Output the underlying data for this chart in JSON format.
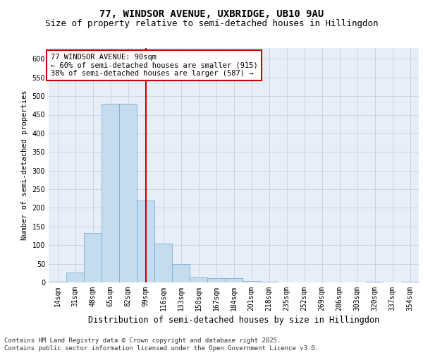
{
  "title1": "77, WINDSOR AVENUE, UXBRIDGE, UB10 9AU",
  "title2": "Size of property relative to semi-detached houses in Hillingdon",
  "xlabel": "Distribution of semi-detached houses by size in Hillingdon",
  "ylabel": "Number of semi-detached properties",
  "categories": [
    "14sqm",
    "31sqm",
    "48sqm",
    "65sqm",
    "82sqm",
    "99sqm",
    "116sqm",
    "133sqm",
    "150sqm",
    "167sqm",
    "184sqm",
    "201sqm",
    "218sqm",
    "235sqm",
    "252sqm",
    "269sqm",
    "286sqm",
    "303sqm",
    "320sqm",
    "337sqm",
    "354sqm"
  ],
  "values": [
    2,
    27,
    133,
    480,
    480,
    220,
    105,
    50,
    14,
    12,
    12,
    4,
    1,
    0,
    0,
    0,
    0,
    0,
    1,
    0,
    1
  ],
  "bar_color": "#c5dcef",
  "bar_edge_color": "#7bafd4",
  "grid_color": "#c8d4e8",
  "background_color": "#e8eef8",
  "vline_x_index": 5,
  "vline_color": "#cc0000",
  "annotation_text": "77 WINDSOR AVENUE: 90sqm\n← 60% of semi-detached houses are smaller (915)\n38% of semi-detached houses are larger (587) →",
  "annotation_box_color": "#cc0000",
  "ylim": [
    0,
    630
  ],
  "yticks": [
    0,
    50,
    100,
    150,
    200,
    250,
    300,
    350,
    400,
    450,
    500,
    550,
    600
  ],
  "footnote": "Contains HM Land Registry data © Crown copyright and database right 2025.\nContains public sector information licensed under the Open Government Licence v3.0.",
  "title1_fontsize": 10,
  "title2_fontsize": 9,
  "xlabel_fontsize": 8.5,
  "ylabel_fontsize": 7.5,
  "tick_fontsize": 7,
  "annotation_fontsize": 7.5,
  "footnote_fontsize": 6.5
}
